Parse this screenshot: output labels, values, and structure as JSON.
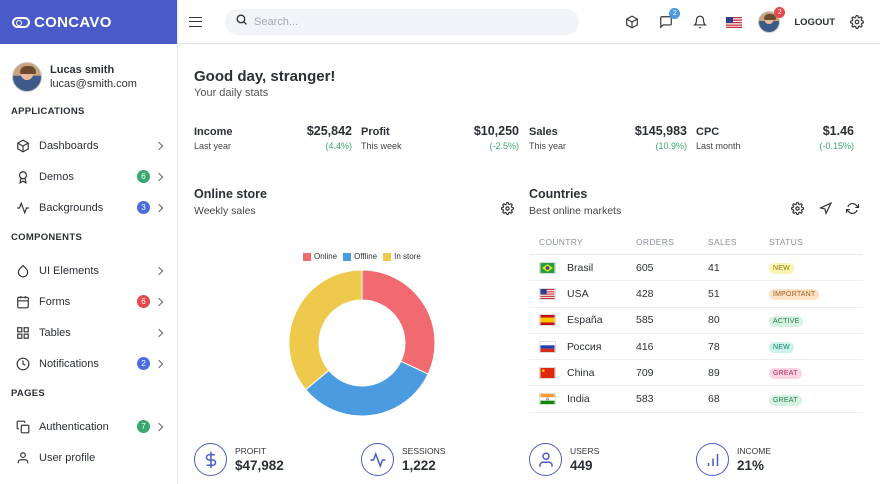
{
  "brand": {
    "name": "CONCAVO"
  },
  "user": {
    "name": "Lucas smith",
    "email": "lucas@smith.com"
  },
  "sidebar": {
    "sections": [
      {
        "title": "APPLICATIONS"
      },
      {
        "title": "COMPONENTS"
      },
      {
        "title": "PAGES"
      }
    ],
    "items": [
      {
        "label": "Dashboards",
        "icon": "cube-icon"
      },
      {
        "label": "Demos",
        "icon": "award-icon",
        "badge": "6",
        "badge_color": "#3aa770"
      },
      {
        "label": "Backgrounds",
        "icon": "activity-icon",
        "badge": "3",
        "badge_color": "#4a6ee0"
      },
      {
        "label": "UI Elements",
        "icon": "droplet-icon"
      },
      {
        "label": "Forms",
        "icon": "calendar-icon",
        "badge": "6",
        "badge_color": "#e5484d"
      },
      {
        "label": "Tables",
        "icon": "grid-icon"
      },
      {
        "label": "Notifications",
        "icon": "clock-icon",
        "badge": "2",
        "badge_color": "#4a6ee0"
      },
      {
        "label": "Authentication",
        "icon": "copy-icon",
        "badge": "7",
        "badge_color": "#3aa770"
      },
      {
        "label": "User profile",
        "icon": "user-icon"
      }
    ]
  },
  "topbar": {
    "search_placeholder": "Search...",
    "messages_badge": "2",
    "avatar_badge": "2",
    "logout_label": "LOGOUT"
  },
  "main": {
    "greeting": "Good day, stranger!",
    "greeting_sub": "Your daily stats",
    "stats": [
      {
        "label": "Income",
        "value": "$25,842",
        "period": "Last year",
        "change": "(4.4%)"
      },
      {
        "label": "Profit",
        "value": "$10,250",
        "period": "This week",
        "change": "(-2.5%)"
      },
      {
        "label": "Sales",
        "value": "$145,983",
        "period": "This year",
        "change": "(10.9%)"
      },
      {
        "label": "CPC",
        "value": "$1.46",
        "period": "Last month",
        "change": "(-0.15%)"
      }
    ],
    "online_store": {
      "title": "Online store",
      "subtitle": "Weekly sales"
    },
    "countries": {
      "title": "Countries",
      "subtitle": "Best online markets",
      "columns": [
        "COUNTRY",
        "ORDERS",
        "SALES",
        "STATUS"
      ],
      "rows": [
        {
          "country": "Brasil",
          "orders": "605",
          "sales": "41",
          "status": "NEW",
          "status_bg": "#fbf3b0",
          "status_fg": "#8a7a10",
          "flag": "br"
        },
        {
          "country": "USA",
          "orders": "428",
          "sales": "51",
          "status": "IMPORTANT",
          "status_bg": "#fde2c6",
          "status_fg": "#a5581a",
          "flag": "us"
        },
        {
          "country": "España",
          "orders": "585",
          "sales": "80",
          "status": "ACTIVE",
          "status_bg": "#d4f2e0",
          "status_fg": "#2a7a4c",
          "flag": "es"
        },
        {
          "country": "Россия",
          "orders": "416",
          "sales": "78",
          "status": "NEW",
          "status_bg": "#ccf2ec",
          "status_fg": "#1f7a6c",
          "flag": "ru"
        },
        {
          "country": "China",
          "orders": "709",
          "sales": "89",
          "status": "GREAT",
          "status_bg": "#fbd5e2",
          "status_fg": "#a5294f",
          "flag": "cn"
        },
        {
          "country": "India",
          "orders": "583",
          "sales": "68",
          "status": "GREAT",
          "status_bg": "#d4f2e0",
          "status_fg": "#2a7a4c",
          "flag": "in"
        }
      ]
    },
    "kpis": [
      {
        "label": "PROFIT",
        "value": "$47,982",
        "icon": "dollar-icon"
      },
      {
        "label": "SESSIONS",
        "value": "1,222",
        "icon": "activity-icon"
      },
      {
        "label": "USERS",
        "value": "449",
        "icon": "user-icon"
      },
      {
        "label": "INCOME",
        "value": "21%",
        "icon": "bar-chart-icon"
      }
    ]
  },
  "chart_data": {
    "type": "pie",
    "title": "",
    "categories": [
      "Online",
      "Offline",
      "In store"
    ],
    "values": [
      32,
      32,
      36
    ],
    "colors": [
      "#f06a6f",
      "#4a9be0",
      "#efc94c"
    ],
    "legend": "top"
  }
}
